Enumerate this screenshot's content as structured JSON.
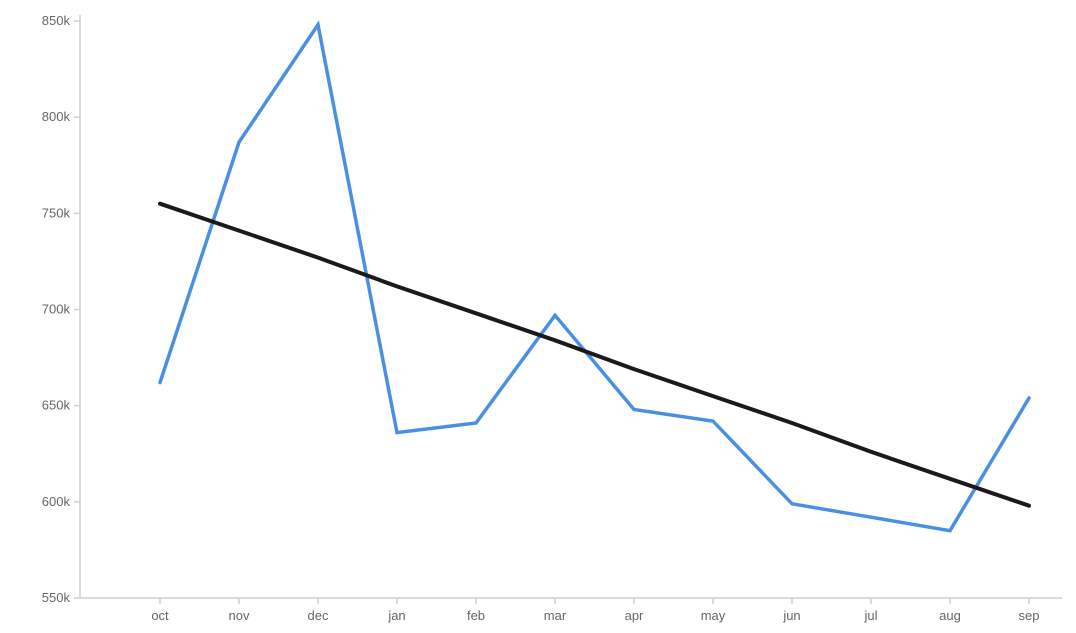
{
  "chart_data": {
    "type": "line",
    "title": "",
    "xlabel": "",
    "ylabel": "",
    "categories": [
      "oct",
      "nov",
      "dec",
      "jan",
      "feb",
      "mar",
      "apr",
      "may",
      "jun",
      "jul",
      "aug",
      "sep"
    ],
    "ylim": [
      550000,
      850000
    ],
    "y_ticks": [
      550000,
      600000,
      650000,
      700000,
      750000,
      800000,
      850000
    ],
    "y_tick_labels": [
      "550k",
      "600k",
      "650k",
      "700k",
      "750k",
      "800k",
      "850k"
    ],
    "grid": false,
    "series": [
      {
        "color": "#4a90e2",
        "values": [
          662000,
          787000,
          848000,
          636000,
          641000,
          697000,
          648000,
          642000,
          599000,
          592000,
          585000,
          654000
        ]
      },
      {
        "color": "#1a1a1a",
        "values": [
          755000,
          741000,
          727000,
          712000,
          698000,
          684000,
          669000,
          655000,
          641000,
          626000,
          612000,
          598000
        ]
      }
    ]
  }
}
